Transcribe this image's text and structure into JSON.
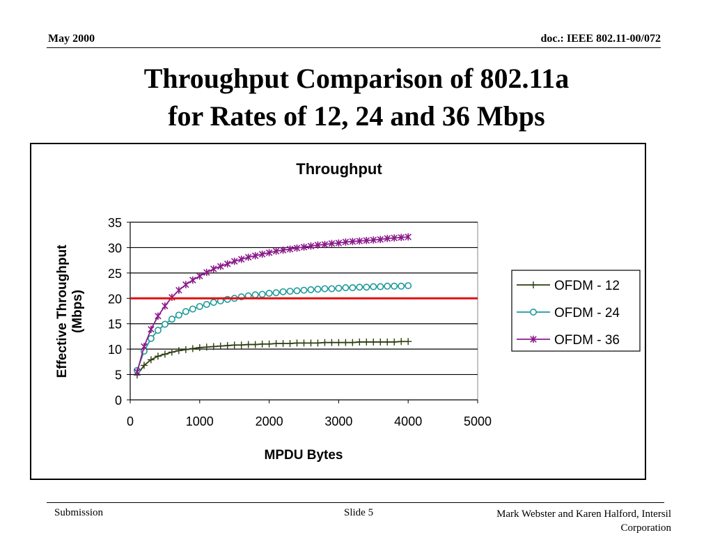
{
  "header": {
    "date": "May 2000",
    "doc_id": "doc.: IEEE 802.11-00/072"
  },
  "slide_title": {
    "line1": "Throughput Comparison of 802.11a",
    "line2": "for Rates of 12, 24 and 36 Mbps"
  },
  "footer": {
    "left": "Submission",
    "center": "Slide 5",
    "right_line1": "Mark Webster and Karen Halford, Intersil",
    "right_line2": "Corporation"
  },
  "colors": {
    "ofdm12": "#2d3d0f",
    "ofdm24": "#1e9a9a",
    "ofdm36": "#8a1a8a",
    "reference_line": "#e01010"
  },
  "chart_data": {
    "type": "line",
    "title": "Throughput",
    "xlabel": "MPDU Bytes",
    "ylabel_line1": "Effective Throughput",
    "ylabel_line2": "(Mbps)",
    "xlim": [
      0,
      5000
    ],
    "ylim": [
      0,
      35
    ],
    "x_ticks": [
      0,
      1000,
      2000,
      3000,
      4000,
      5000
    ],
    "y_ticks": [
      0,
      5,
      10,
      15,
      20,
      25,
      30,
      35
    ],
    "grid": "horizontal",
    "legend": "right",
    "reference_line": {
      "y": 20
    },
    "x": [
      100,
      200,
      300,
      400,
      500,
      600,
      700,
      800,
      900,
      1000,
      1100,
      1200,
      1300,
      1400,
      1500,
      1600,
      1700,
      1800,
      1900,
      2000,
      2100,
      2200,
      2300,
      2400,
      2500,
      2600,
      2700,
      2800,
      2900,
      3000,
      3100,
      3200,
      3300,
      3400,
      3500,
      3600,
      3700,
      3800,
      3900,
      4000
    ],
    "series": [
      {
        "name": "OFDM - 12",
        "marker": "plus",
        "values": [
          4.9,
          6.8,
          7.9,
          8.6,
          9.0,
          9.4,
          9.7,
          9.9,
          10.1,
          10.3,
          10.4,
          10.5,
          10.6,
          10.7,
          10.8,
          10.8,
          10.9,
          10.9,
          11.0,
          11.0,
          11.1,
          11.1,
          11.1,
          11.2,
          11.2,
          11.2,
          11.2,
          11.3,
          11.3,
          11.3,
          11.3,
          11.3,
          11.4,
          11.4,
          11.4,
          11.4,
          11.4,
          11.4,
          11.5,
          11.5
        ]
      },
      {
        "name": "OFDM - 24",
        "marker": "circle",
        "values": [
          5.8,
          9.6,
          12.1,
          13.7,
          14.9,
          15.9,
          16.7,
          17.4,
          17.9,
          18.4,
          18.8,
          19.2,
          19.5,
          19.8,
          20.0,
          20.3,
          20.5,
          20.7,
          20.8,
          21.0,
          21.1,
          21.3,
          21.4,
          21.5,
          21.6,
          21.7,
          21.8,
          21.9,
          21.9,
          22.0,
          22.1,
          22.1,
          22.2,
          22.2,
          22.3,
          22.3,
          22.4,
          22.4,
          22.4,
          22.5
        ]
      },
      {
        "name": "OFDM - 36",
        "marker": "asterisk",
        "values": [
          5.5,
          10.5,
          13.9,
          16.5,
          18.5,
          20.2,
          21.6,
          22.7,
          23.6,
          24.4,
          25.1,
          25.8,
          26.3,
          26.8,
          27.3,
          27.7,
          28.1,
          28.4,
          28.7,
          29.0,
          29.3,
          29.5,
          29.7,
          29.9,
          30.1,
          30.3,
          30.5,
          30.6,
          30.8,
          30.9,
          31.1,
          31.2,
          31.3,
          31.4,
          31.5,
          31.6,
          31.8,
          31.9,
          32.0,
          32.1
        ]
      }
    ]
  }
}
